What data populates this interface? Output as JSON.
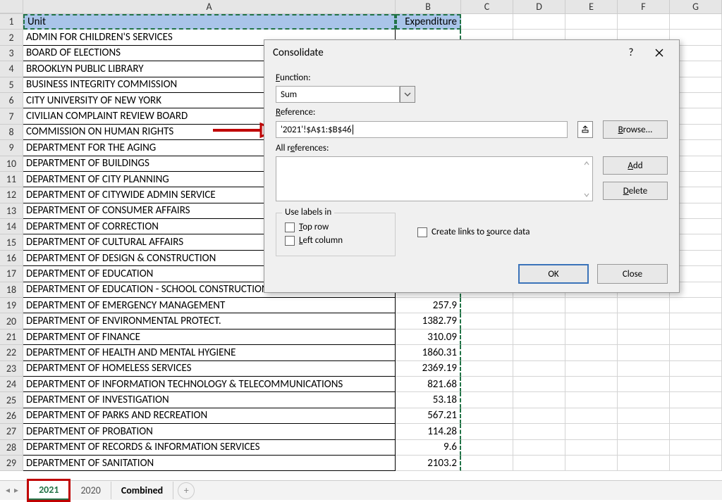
{
  "columns": [
    "A",
    "B",
    "C",
    "D",
    "E",
    "F",
    "G"
  ],
  "header": {
    "unit": "Unit",
    "exp": "Expenditure"
  },
  "rows": [
    {
      "n": 1,
      "a": "Unit",
      "b": "Expenditure",
      "hdr": true
    },
    {
      "n": 2,
      "a": "ADMIN FOR CHILDREN'S SERVICES",
      "b": ""
    },
    {
      "n": 3,
      "a": "BOARD OF ELECTIONS",
      "b": ""
    },
    {
      "n": 4,
      "a": "BROOKLYN PUBLIC LIBRARY",
      "b": ""
    },
    {
      "n": 5,
      "a": "BUSINESS INTEGRITY COMMISSION",
      "b": ""
    },
    {
      "n": 6,
      "a": "CITY UNIVERSITY OF NEW YORK",
      "b": ""
    },
    {
      "n": 7,
      "a": "CIVILIAN COMPLAINT REVIEW BOARD",
      "b": ""
    },
    {
      "n": 8,
      "a": "COMMISSION ON HUMAN RIGHTS",
      "b": ""
    },
    {
      "n": 9,
      "a": "DEPARTMENT FOR THE AGING",
      "b": ""
    },
    {
      "n": 10,
      "a": "DEPARTMENT OF BUILDINGS",
      "b": ""
    },
    {
      "n": 11,
      "a": "DEPARTMENT OF CITY PLANNING",
      "b": ""
    },
    {
      "n": 12,
      "a": "DEPARTMENT OF CITYWIDE ADMIN SERVICE",
      "b": ""
    },
    {
      "n": 13,
      "a": "DEPARTMENT OF CONSUMER AFFAIRS",
      "b": ""
    },
    {
      "n": 14,
      "a": "DEPARTMENT OF CORRECTION",
      "b": ""
    },
    {
      "n": 15,
      "a": "DEPARTMENT OF CULTURAL AFFAIRS",
      "b": ""
    },
    {
      "n": 16,
      "a": "DEPARTMENT OF DESIGN & CONSTRUCTION",
      "b": ""
    },
    {
      "n": 17,
      "a": "DEPARTMENT OF EDUCATION",
      "b": ""
    },
    {
      "n": 18,
      "a": "DEPARTMENT OF EDUCATION - SCHOOL CONSTRUCTION AUTHORITY",
      "b": ""
    },
    {
      "n": 19,
      "a": "DEPARTMENT OF EMERGENCY MANAGEMENT",
      "b": "257.9"
    },
    {
      "n": 20,
      "a": "DEPARTMENT OF ENVIRONMENTAL PROTECT.",
      "b": "1382.79"
    },
    {
      "n": 21,
      "a": "DEPARTMENT OF FINANCE",
      "b": "310.09"
    },
    {
      "n": 22,
      "a": "DEPARTMENT OF HEALTH AND MENTAL HYGIENE",
      "b": "1860.31"
    },
    {
      "n": 23,
      "a": "DEPARTMENT OF HOMELESS SERVICES",
      "b": "2369.19"
    },
    {
      "n": 24,
      "a": "DEPARTMENT OF INFORMATION TECHNOLOGY & TELECOMMUNICATIONS",
      "b": "821.68"
    },
    {
      "n": 25,
      "a": "DEPARTMENT OF INVESTIGATION",
      "b": "53.18"
    },
    {
      "n": 26,
      "a": "DEPARTMENT OF PARKS AND RECREATION",
      "b": "567.21"
    },
    {
      "n": 27,
      "a": "DEPARTMENT OF PROBATION",
      "b": "114.28"
    },
    {
      "n": 28,
      "a": "DEPARTMENT OF RECORDS & INFORMATION SERVICES",
      "b": "9.6"
    },
    {
      "n": 29,
      "a": "DEPARTMENT OF SANITATION",
      "b": "2103.2"
    }
  ],
  "dialog": {
    "title": "Consolidate",
    "function_label": "Function:",
    "function_value": "Sum",
    "reference_label": "Reference:",
    "reference_value": "'2021'!$A$1:$B$46",
    "allrefs_label": "All references:",
    "uselabels_legend": "Use labels in",
    "toprow": "Top row",
    "leftcol": "Left column",
    "createlinks": "Create links to source data",
    "browse": "Browse...",
    "add": "Add",
    "delete": "Delete",
    "ok": "OK",
    "close": "Close"
  },
  "tabs": {
    "t1": "2021",
    "t2": "2020",
    "t3": "Combined"
  },
  "colors": {
    "sel_bg": "#a9c4e9",
    "marching": "#217346",
    "dlg_bg": "#f0f0f0",
    "ok_border": "#3b73b9",
    "red": "#c00000"
  }
}
